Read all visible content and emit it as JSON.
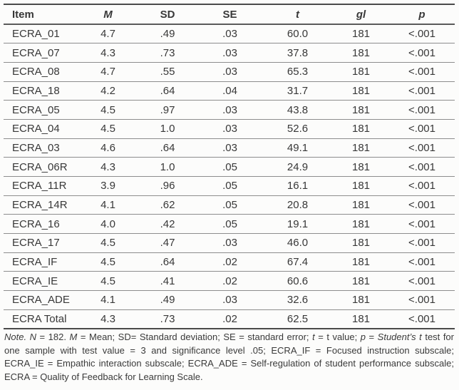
{
  "table": {
    "columns": [
      {
        "label": "Item",
        "italic": false,
        "align": "left"
      },
      {
        "label": "M",
        "italic": true,
        "align": "center"
      },
      {
        "label": "SD",
        "italic": false,
        "align": "center"
      },
      {
        "label": "SE",
        "italic": false,
        "align": "center"
      },
      {
        "label": "t",
        "italic": true,
        "align": "center"
      },
      {
        "label": "gl",
        "italic": true,
        "align": "center"
      },
      {
        "label": "p",
        "italic": true,
        "align": "center"
      }
    ],
    "rows": [
      [
        "ECRA_01",
        "4.7",
        ".49",
        ".03",
        "60.0",
        "181",
        "<.001"
      ],
      [
        "ECRA_07",
        "4.3",
        ".73",
        ".03",
        "37.8",
        "181",
        "<.001"
      ],
      [
        "ECRA_08",
        "4.7",
        ".55",
        ".03",
        "65.3",
        "181",
        "<.001"
      ],
      [
        "ECRA_18",
        "4.2",
        ".64",
        ".04",
        "31.7",
        "181",
        "<.001"
      ],
      [
        "ECRA_05",
        "4.5",
        ".97",
        ".03",
        "43.8",
        "181",
        "<.001"
      ],
      [
        "ECRA_04",
        "4.5",
        "1.0",
        ".03",
        "52.6",
        "181",
        "<.001"
      ],
      [
        "ECRA_03",
        "4.6",
        ".64",
        ".03",
        "49.1",
        "181",
        "<.001"
      ],
      [
        "ECRA_06R",
        "4.3",
        "1.0",
        ".05",
        "24.9",
        "181",
        "<.001"
      ],
      [
        "ECRA_11R",
        "3.9",
        ".96",
        ".05",
        "16.1",
        "181",
        "<.001"
      ],
      [
        "ECRA_14R",
        "4.1",
        ".62",
        ".05",
        "20.8",
        "181",
        "<.001"
      ],
      [
        "ECRA_16",
        "4.0",
        ".42",
        ".05",
        "19.1",
        "181",
        "<.001"
      ],
      [
        "ECRA_17",
        "4.5",
        ".47",
        ".03",
        "46.0",
        "181",
        "<.001"
      ],
      [
        "ECRA_IF",
        "4.5",
        ".64",
        ".02",
        "67.4",
        "181",
        "<.001"
      ],
      [
        "ECRA_IE",
        "4.5",
        ".41",
        ".02",
        "60.6",
        "181",
        "<.001"
      ],
      [
        "ECRA_ADE",
        "4.1",
        ".49",
        ".03",
        "32.6",
        "181",
        "<.001"
      ],
      [
        "ECRA Total",
        "4.3",
        ".73",
        ".02",
        "62.5",
        "181",
        "<.001"
      ]
    ]
  },
  "note": {
    "segments": [
      {
        "text": "Note.",
        "italic": true
      },
      {
        "text": " ",
        "italic": false
      },
      {
        "text": "N",
        "italic": true
      },
      {
        "text": " = 182. ",
        "italic": false
      },
      {
        "text": "M",
        "italic": true
      },
      {
        "text": " = Mean; SD= Standard deviation; SE = standard error; ",
        "italic": false
      },
      {
        "text": "t",
        "italic": true
      },
      {
        "text": " = t value; ",
        "italic": false
      },
      {
        "text": "p",
        "italic": true
      },
      {
        "text": " = ",
        "italic": false
      },
      {
        "text": "Student’s t",
        "italic": true
      },
      {
        "text": " test for one sample with test value = 3 and significance level .05; ECRA_IF = Focused instruction subscale; ECRA_IE = Empathic interaction subscale; ECRA_ADE = Self-regulation of student performance subscale; ECRA = Quality of Feedback for Learning Scale.",
        "italic": false
      }
    ]
  }
}
